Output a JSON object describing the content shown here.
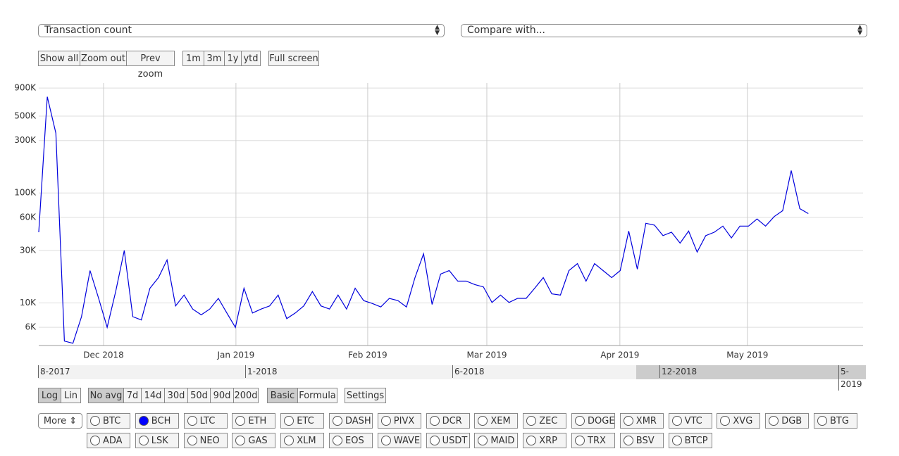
{
  "controls": {
    "metric": "Transaction count",
    "compare": "Compare with...",
    "zoom_buttons": [
      "Show all",
      "Zoom out",
      "Prev zoom"
    ],
    "period_buttons": [
      "1m",
      "3m",
      "1y",
      "ytd"
    ],
    "fullscreen": "Full screen",
    "scale_buttons": [
      "Log",
      "Lin"
    ],
    "avg_buttons": [
      "No avg",
      "7d",
      "14d",
      "30d",
      "50d",
      "90d",
      "200d"
    ],
    "mode_buttons": [
      "Basic",
      "Formula"
    ],
    "settings": "Settings",
    "more": "More",
    "coins_row1": [
      "BTC",
      "BCH",
      "LTC",
      "ETH",
      "ETC",
      "DASH",
      "PIVX",
      "DCR",
      "XEM",
      "ZEC",
      "DOGE",
      "XMR",
      "VTC",
      "XVG",
      "DGB",
      "BTG"
    ],
    "coins_row2": [
      "ADA",
      "LSK",
      "NEO",
      "GAS",
      "XLM",
      "EOS",
      "WAVES",
      "USDT",
      "MAID",
      "XRP",
      "TRX",
      "BSV",
      "BTCP"
    ],
    "selected_coin": "BCH"
  },
  "navigator": {
    "labels": [
      "8-2017",
      "1-2018",
      "6-2018",
      "12-2018",
      "5-2019"
    ]
  },
  "chart_data": {
    "type": "line",
    "log_scale": true,
    "grid": true,
    "color": "#0000dd",
    "values": [
      44000,
      750000,
      350000,
      4500,
      4300,
      7500,
      19700,
      11000,
      6000,
      12700,
      30000,
      7500,
      7000,
      13600,
      17000,
      24600,
      9400,
      11800,
      8800,
      7800,
      8800,
      11000,
      8100,
      6000,
      13600,
      8100,
      8800,
      9400,
      11800,
      7200,
      8100,
      9400,
      12700,
      9400,
      8800,
      11800,
      8800,
      13600,
      10500,
      9900,
      9200,
      11000,
      10500,
      9200,
      17000,
      28000,
      9700,
      18300,
      19700,
      15800,
      15800,
      14700,
      14000,
      10100,
      11800,
      10100,
      11000,
      11000,
      13600,
      17000,
      12100,
      11800,
      19700,
      22800,
      15800,
      22800,
      19700,
      17000,
      19700,
      45000,
      20300,
      53000,
      51000,
      41000,
      44000,
      35000,
      45000,
      29000,
      41000,
      44000,
      50000,
      39000,
      50000,
      50000,
      58000,
      50000,
      61000,
      69000,
      160000,
      72000,
      65000
    ],
    "xlim": [
      0,
      96.4
    ],
    "xticks": [
      {
        "value": 7.58,
        "label": "Dec 2018"
      },
      {
        "value": 23.06,
        "label": "Jan 2019"
      },
      {
        "value": 38.47,
        "label": "Feb 2019"
      },
      {
        "value": 52.4,
        "label": "Mar 2019"
      },
      {
        "value": 67.96,
        "label": "Apr 2019"
      },
      {
        "value": 82.87,
        "label": "May 2019"
      }
    ],
    "ylim": [
      4100,
      1000000
    ],
    "yticks": [
      {
        "value": 6000,
        "label": "6K"
      },
      {
        "value": 10000,
        "label": "10K"
      },
      {
        "value": 30000,
        "label": "30K"
      },
      {
        "value": 60000,
        "label": "60K"
      },
      {
        "value": 100000,
        "label": "100K"
      },
      {
        "value": 300000,
        "label": "300K"
      },
      {
        "value": 500000,
        "label": "500K"
      },
      {
        "value": 900000,
        "label": "900K"
      }
    ]
  }
}
